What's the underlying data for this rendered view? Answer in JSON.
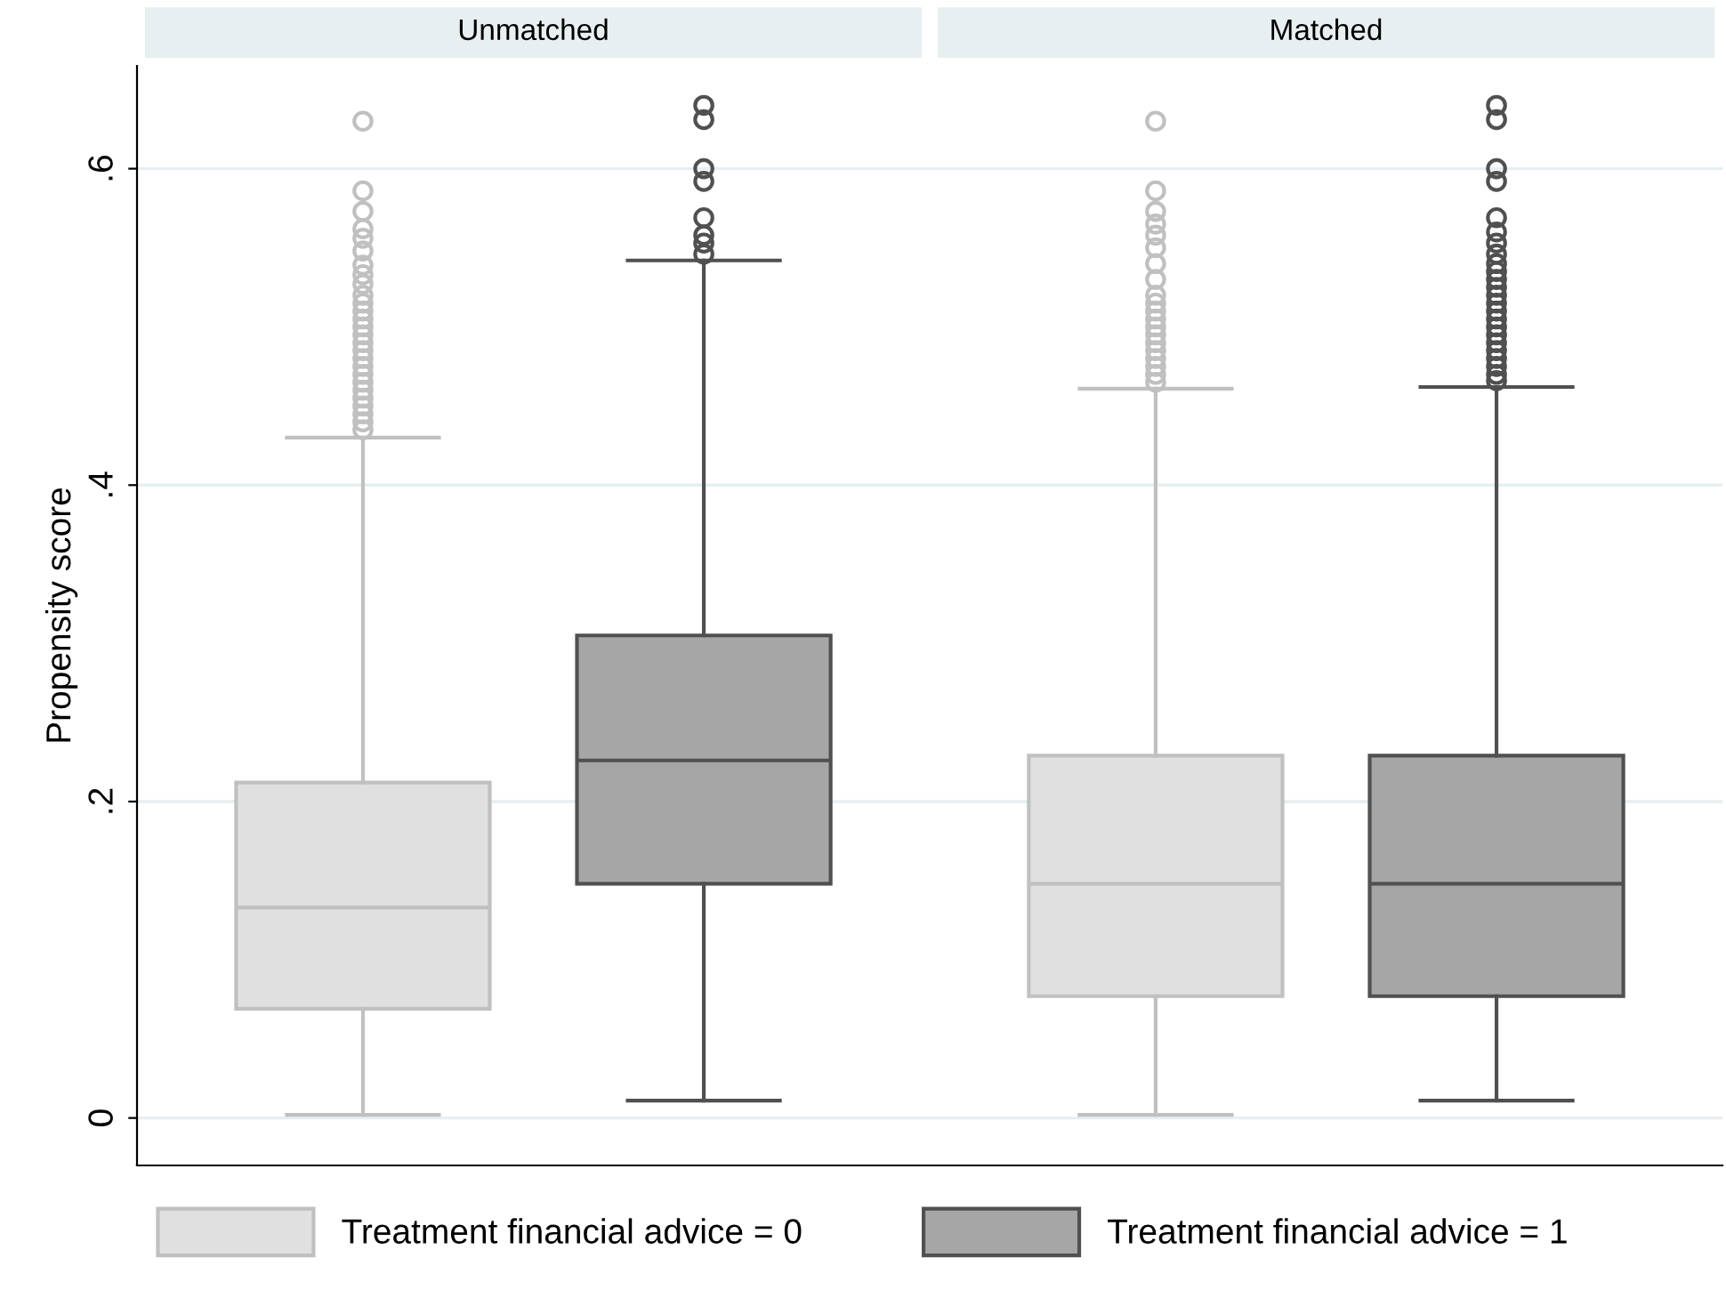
{
  "chart_data": {
    "type": "box",
    "ylabel": "Propensity score",
    "categories": [
      "Unmatched",
      "Matched"
    ],
    "ylim": [
      -0.03,
      0.665
    ],
    "yticks": [
      {
        "value": 0,
        "label": "0"
      },
      {
        "value": 0.2,
        "label": ".2"
      },
      {
        "value": 0.4,
        "label": ".4"
      },
      {
        "value": 0.6,
        "label": ".6"
      }
    ],
    "grid": "y",
    "legend": "bottom",
    "marker": "circle",
    "series": [
      {
        "name": "Treatment financial advice = 0",
        "color": "#e0e0e0",
        "boxes": [
          {
            "low": 0.002,
            "q1": 0.069,
            "median": 0.133,
            "q3": 0.212,
            "high": 0.43,
            "outliers": [
              0.435,
              0.44,
              0.445,
              0.45,
              0.455,
              0.46,
              0.465,
              0.47,
              0.475,
              0.48,
              0.485,
              0.49,
              0.495,
              0.5,
              0.505,
              0.51,
              0.515,
              0.52,
              0.527,
              0.533,
              0.539,
              0.548,
              0.556,
              0.562,
              0.573,
              0.586,
              0.63
            ]
          },
          {
            "low": 0.002,
            "q1": 0.077,
            "median": 0.148,
            "q3": 0.229,
            "high": 0.461,
            "outliers": [
              0.465,
              0.47,
              0.475,
              0.48,
              0.485,
              0.49,
              0.495,
              0.5,
              0.505,
              0.51,
              0.515,
              0.52,
              0.53,
              0.54,
              0.55,
              0.558,
              0.565,
              0.573,
              0.586,
              0.63
            ]
          }
        ]
      },
      {
        "name": "Treatment financial advice = 1",
        "color": "#a6a6a6",
        "boxes": [
          {
            "low": 0.011,
            "q1": 0.148,
            "median": 0.226,
            "q3": 0.305,
            "high": 0.542,
            "outliers": [
              0.546,
              0.553,
              0.558,
              0.569,
              0.592,
              0.6,
              0.631,
              0.64
            ]
          },
          {
            "low": 0.011,
            "q1": 0.077,
            "median": 0.148,
            "q3": 0.229,
            "high": 0.462,
            "outliers": [
              0.466,
              0.47,
              0.475,
              0.48,
              0.485,
              0.49,
              0.495,
              0.5,
              0.505,
              0.51,
              0.515,
              0.52,
              0.525,
              0.53,
              0.535,
              0.54,
              0.546,
              0.553,
              0.56,
              0.569,
              0.592,
              0.6,
              0.631,
              0.64
            ]
          }
        ]
      }
    ]
  }
}
